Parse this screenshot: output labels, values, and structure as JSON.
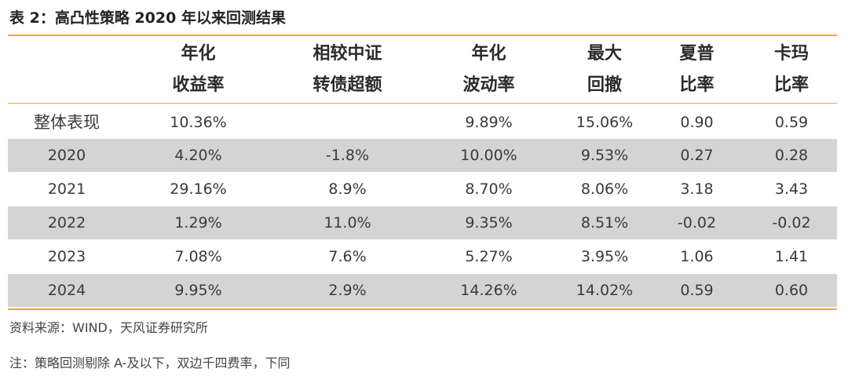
{
  "title": "表 2：高凸性策略 2020 年以来回测结果",
  "headers": [
    {
      "line1": "",
      "line2": ""
    },
    {
      "line1": "年化",
      "line2": "收益率"
    },
    {
      "line1": "相较中证",
      "line2": "转债超额"
    },
    {
      "line1": "年化",
      "line2": "波动率"
    },
    {
      "line1": "最大",
      "line2": "回撤"
    },
    {
      "line1": "夏普",
      "line2": "比率"
    },
    {
      "line1": "卡玛",
      "line2": "比率"
    }
  ],
  "rows": [
    [
      "整体表现",
      "10.36%",
      "",
      "9.89%",
      "15.06%",
      "0.90",
      "0.59"
    ],
    [
      "2020",
      "4.20%",
      "-1.8%",
      "10.00%",
      "9.53%",
      "0.27",
      "0.28"
    ],
    [
      "2021",
      "29.16%",
      "8.9%",
      "8.70%",
      "8.06%",
      "3.18",
      "3.43"
    ],
    [
      "2022",
      "1.29%",
      "11.0%",
      "9.35%",
      "8.51%",
      "-0.02",
      "-0.02"
    ],
    [
      "2023",
      "7.08%",
      "7.6%",
      "5.27%",
      "3.95%",
      "1.06",
      "1.41"
    ],
    [
      "2024",
      "9.95%",
      "2.9%",
      "14.26%",
      "14.02%",
      "0.59",
      "0.60"
    ]
  ],
  "source": "资料来源：WIND，天风证券研究所",
  "note": "注：策略回测剔除 A-及以下，双边千四费率，下同",
  "colors": {
    "accent": "#e8a44c",
    "shade": "#d4d4d4"
  }
}
